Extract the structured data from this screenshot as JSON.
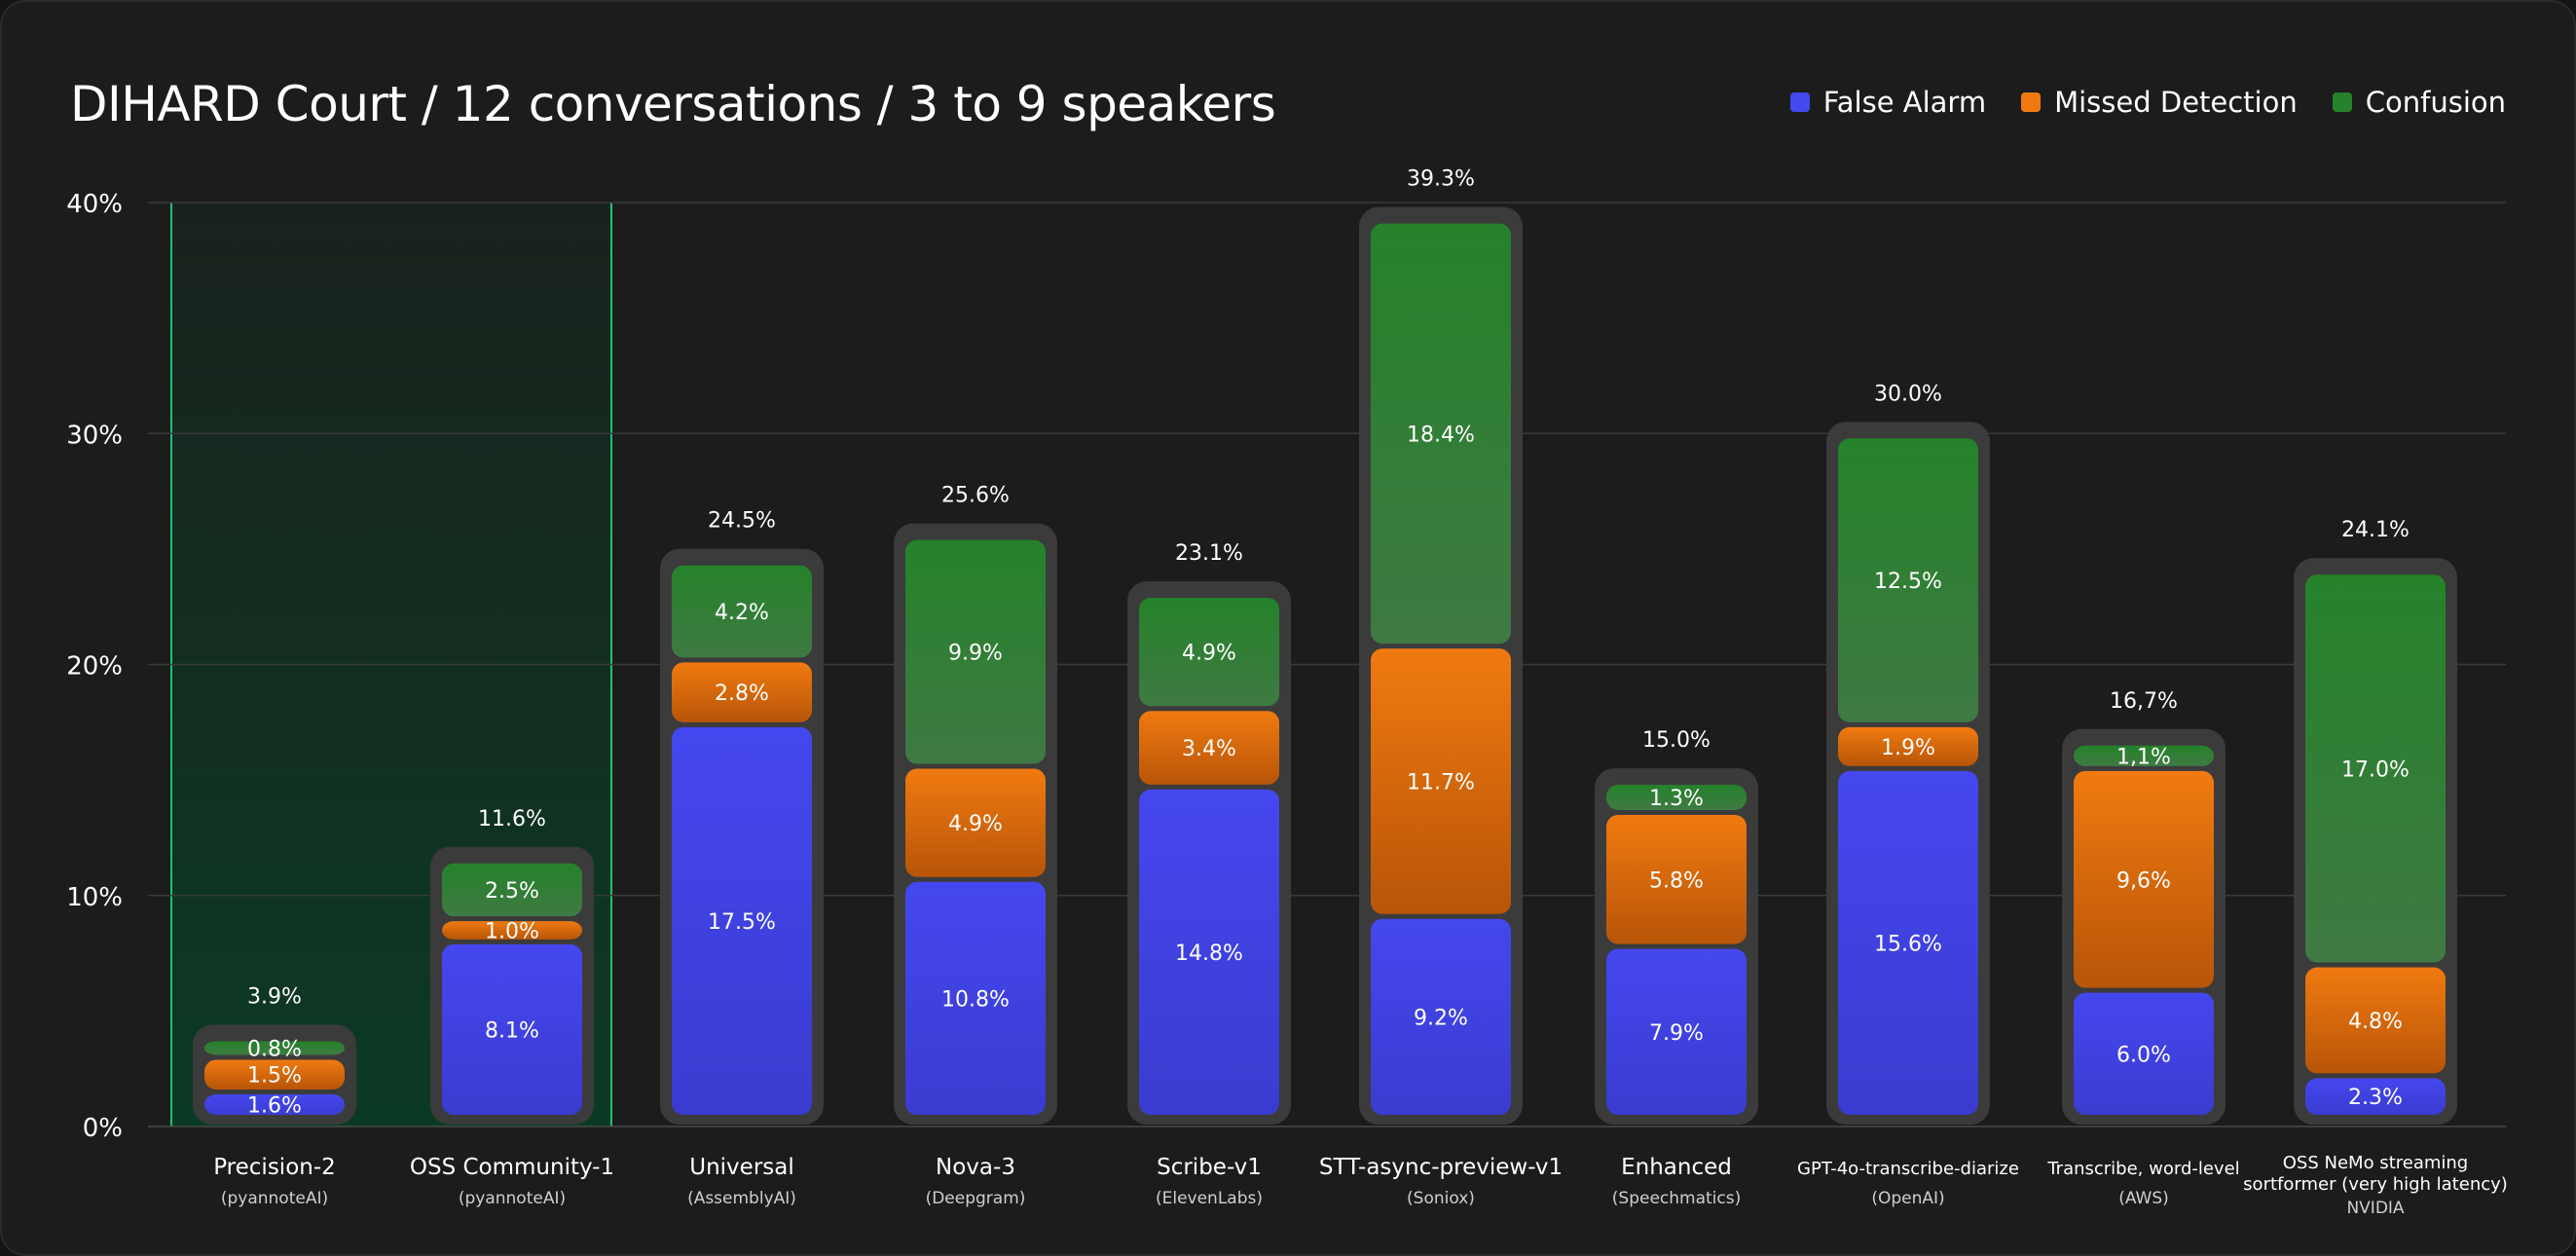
{
  "title": "DIHARD Court / 12 conversations / 3 to 9 speakers",
  "legend": [
    {
      "label": "False Alarm",
      "color": "#4547ef"
    },
    {
      "label": "Missed Detection",
      "color": "#f07a10"
    },
    {
      "label": "Confusion",
      "color": "#25822a"
    }
  ],
  "chart_data": {
    "type": "bar",
    "stacked": true,
    "title": "DIHARD Court / 12 conversations / 3 to 9 speakers",
    "xlabel": "",
    "ylabel": "",
    "ylim": [
      0,
      40
    ],
    "yticks": [
      0,
      10,
      20,
      30,
      40
    ],
    "ytick_labels": [
      "0%",
      "10%",
      "20%",
      "30%",
      "40%"
    ],
    "grid": true,
    "legend_position": "top-right",
    "highlight": {
      "categories": [
        "Precision-2",
        "OSS Community-1"
      ]
    },
    "categories": [
      {
        "name": "Precision-2",
        "provider": "(pyannoteAI)"
      },
      {
        "name": "OSS Community-1",
        "provider": "(pyannoteAI)"
      },
      {
        "name": "Universal",
        "provider": "(AssemblyAI)"
      },
      {
        "name": "Nova-3",
        "provider": "(Deepgram)"
      },
      {
        "name": "Scribe-v1",
        "provider": "(ElevenLabs)"
      },
      {
        "name": "STT-async-preview-v1",
        "provider": "(Soniox)"
      },
      {
        "name": "Enhanced",
        "provider": "(Speechmatics)"
      },
      {
        "name": "GPT-4o-transcribe-diarize",
        "provider": "(OpenAI)"
      },
      {
        "name": "Transcribe, word-level",
        "provider": "(AWS)"
      },
      {
        "name": "OSS NeMo streaming sortformer (very high latency)",
        "provider": "NVIDIA"
      }
    ],
    "totals": [
      3.9,
      11.6,
      24.5,
      25.6,
      23.1,
      39.3,
      15.0,
      30.0,
      16.7,
      24.1
    ],
    "total_labels": [
      "3.9%",
      "11.6%",
      "24.5%",
      "25.6%",
      "23.1%",
      "39.3%",
      "15.0%",
      "30.0%",
      "16,7%",
      "24.1%"
    ],
    "series": [
      {
        "name": "False Alarm",
        "color": "#4547ef",
        "values": [
          1.6,
          8.1,
          17.5,
          10.8,
          14.8,
          9.2,
          7.9,
          15.6,
          6.0,
          2.3
        ],
        "labels": [
          "1.6%",
          "8.1%",
          "17.5%",
          "10.8%",
          "14.8%",
          "9.2%",
          "7.9%",
          "15.6%",
          "6.0%",
          "2.3%"
        ]
      },
      {
        "name": "Missed Detection",
        "color": "#f07a10",
        "values": [
          1.5,
          1.0,
          2.8,
          4.9,
          3.4,
          11.7,
          5.8,
          1.9,
          9.6,
          4.8
        ],
        "labels": [
          "1.5%",
          "1.0%",
          "2.8%",
          "4.9%",
          "3.4%",
          "11.7%",
          "5.8%",
          "1.9%",
          "9,6%",
          "4.8%"
        ]
      },
      {
        "name": "Confusion",
        "color": "#25822a",
        "values": [
          0.8,
          2.5,
          4.2,
          9.9,
          4.9,
          18.4,
          1.3,
          12.5,
          1.1,
          17.0
        ],
        "labels": [
          "0.8%",
          "2.5%",
          "4.2%",
          "9.9%",
          "4.9%",
          "18.4%",
          "1.3%",
          "12.5%",
          "1,1%",
          "17.0%"
        ]
      }
    ]
  }
}
